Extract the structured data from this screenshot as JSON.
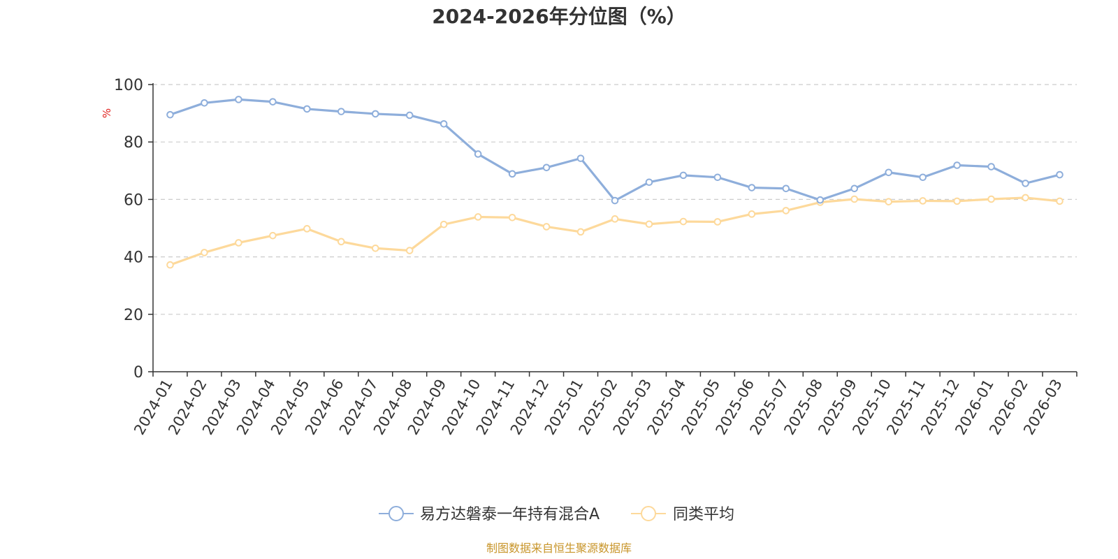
{
  "chart_data": {
    "type": "line",
    "title": "2024-2026年分位图（%）",
    "ylabel": "%",
    "ylim": [
      0,
      100
    ],
    "yticks": [
      0,
      20,
      40,
      60,
      80,
      100
    ],
    "grid": true,
    "legend_position": "bottom",
    "categories": [
      "2024-01",
      "2024-02",
      "2024-03",
      "2024-04",
      "2024-05",
      "2024-06",
      "2024-07",
      "2024-08",
      "2024-09",
      "2024-10",
      "2024-11",
      "2024-12",
      "2025-01",
      "2025-02",
      "2025-03",
      "2025-04",
      "2025-05",
      "2025-06",
      "2025-07",
      "2025-08",
      "2025-09",
      "2025-10",
      "2025-11",
      "2025-12",
      "2026-01",
      "2026-02",
      "2026-03"
    ],
    "series": [
      {
        "name": "易方达磐泰一年持有混合A",
        "color": "#8eaedb",
        "values": [
          89.5,
          93.6,
          94.8,
          94.0,
          91.5,
          90.6,
          89.8,
          89.3,
          86.3,
          75.8,
          68.9,
          71.1,
          74.3,
          59.6,
          66.0,
          68.4,
          67.7,
          64.1,
          63.8,
          59.8,
          63.8,
          69.4,
          67.7,
          71.9,
          71.4,
          65.6,
          68.6
        ]
      },
      {
        "name": "同类平均",
        "color": "#fdd99b",
        "values": [
          37.2,
          41.5,
          44.9,
          47.4,
          49.8,
          45.3,
          43.0,
          42.2,
          51.3,
          53.9,
          53.7,
          50.5,
          48.7,
          53.2,
          51.4,
          52.3,
          52.2,
          54.9,
          56.1,
          59.0,
          60.1,
          59.2,
          59.5,
          59.4,
          60.1,
          60.6,
          59.4
        ]
      }
    ]
  },
  "source": {
    "text": "制图数据来自恒生聚源数据库",
    "color": "#c8952a"
  },
  "ylabel_color": "#e0201c"
}
